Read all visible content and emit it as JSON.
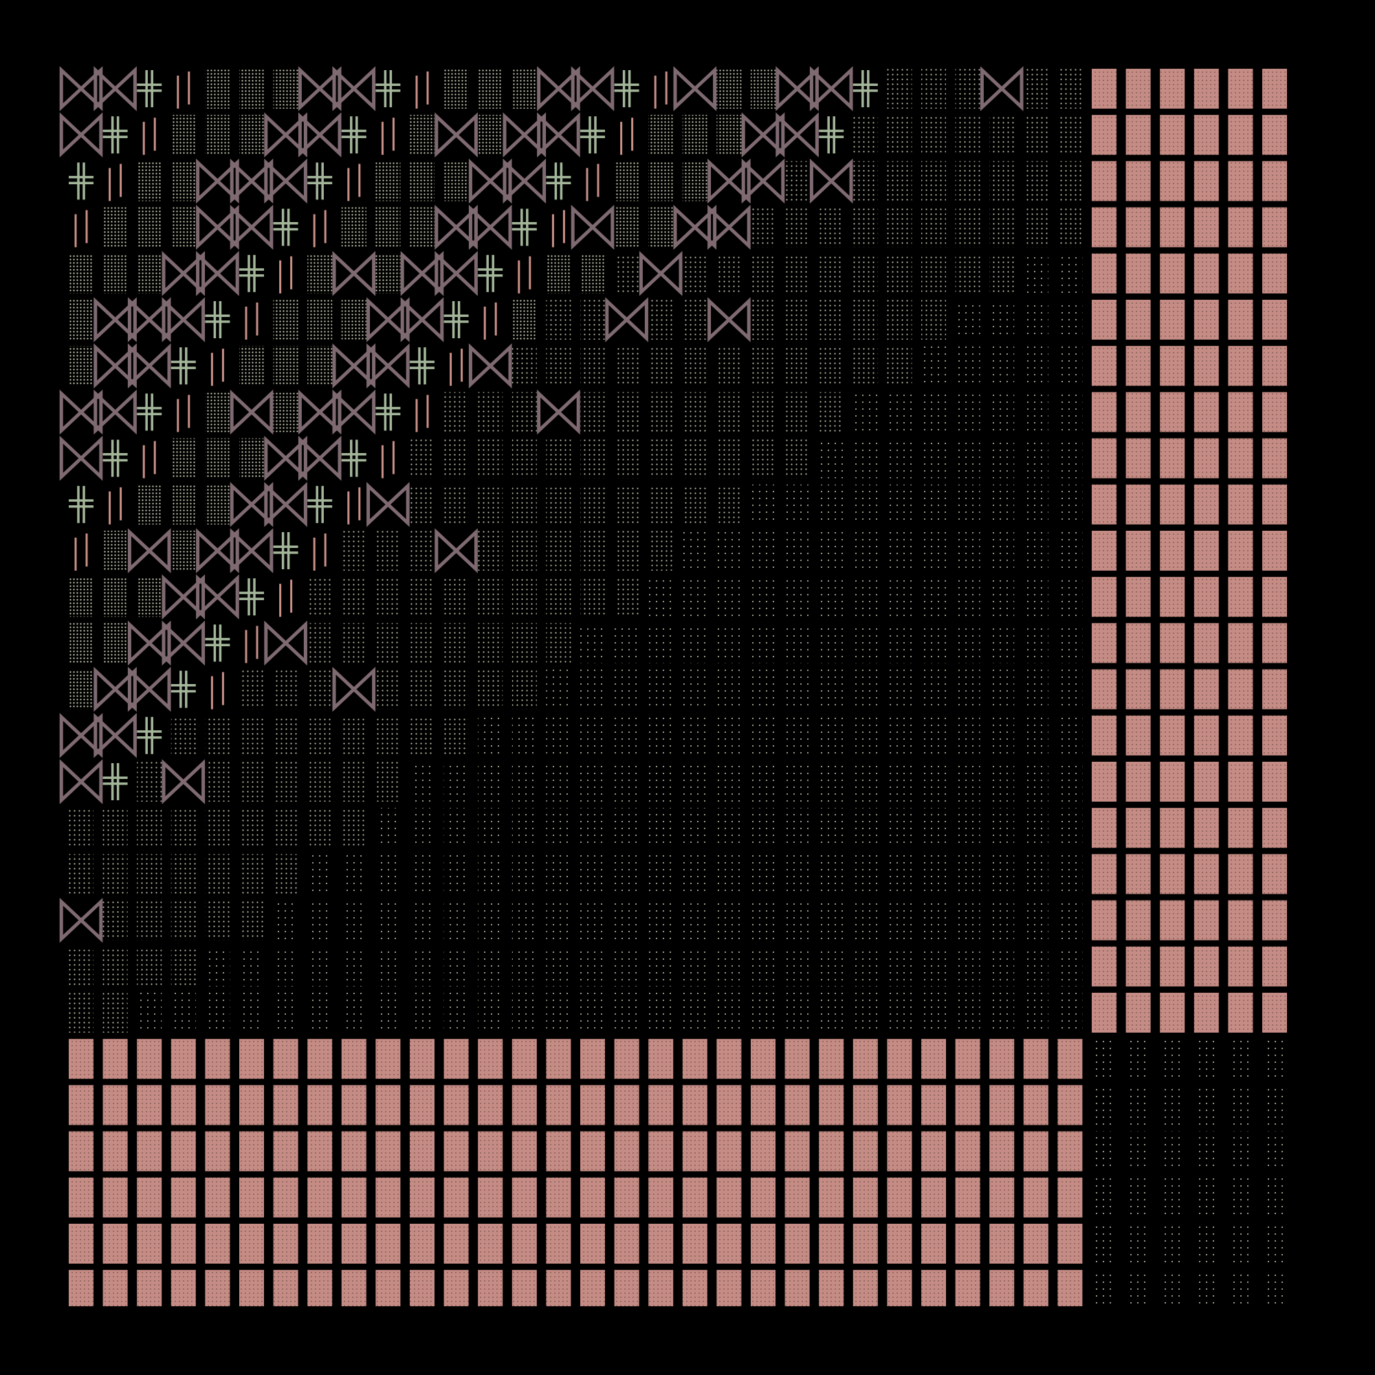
{
  "artwork": {
    "background": "#000000",
    "palette": {
      "salmon_block": "#c48c84",
      "salmon_dot": "#8a5e58",
      "sage_cross": "#a3b69a",
      "mauve_bowtie": "#7f6a72",
      "rose_bar": "#c99088",
      "dots_light": "#c9ceb4",
      "dots_dim": "#a4a992"
    },
    "motifs": [
      "bowtie-icon",
      "double-cross-icon",
      "vertical-bar-icon",
      "dot-texture-cell",
      "solid-dotted-block"
    ],
    "grid": {
      "columns": 36,
      "rows": 27,
      "split_column": 30,
      "split_row": 21
    }
  }
}
